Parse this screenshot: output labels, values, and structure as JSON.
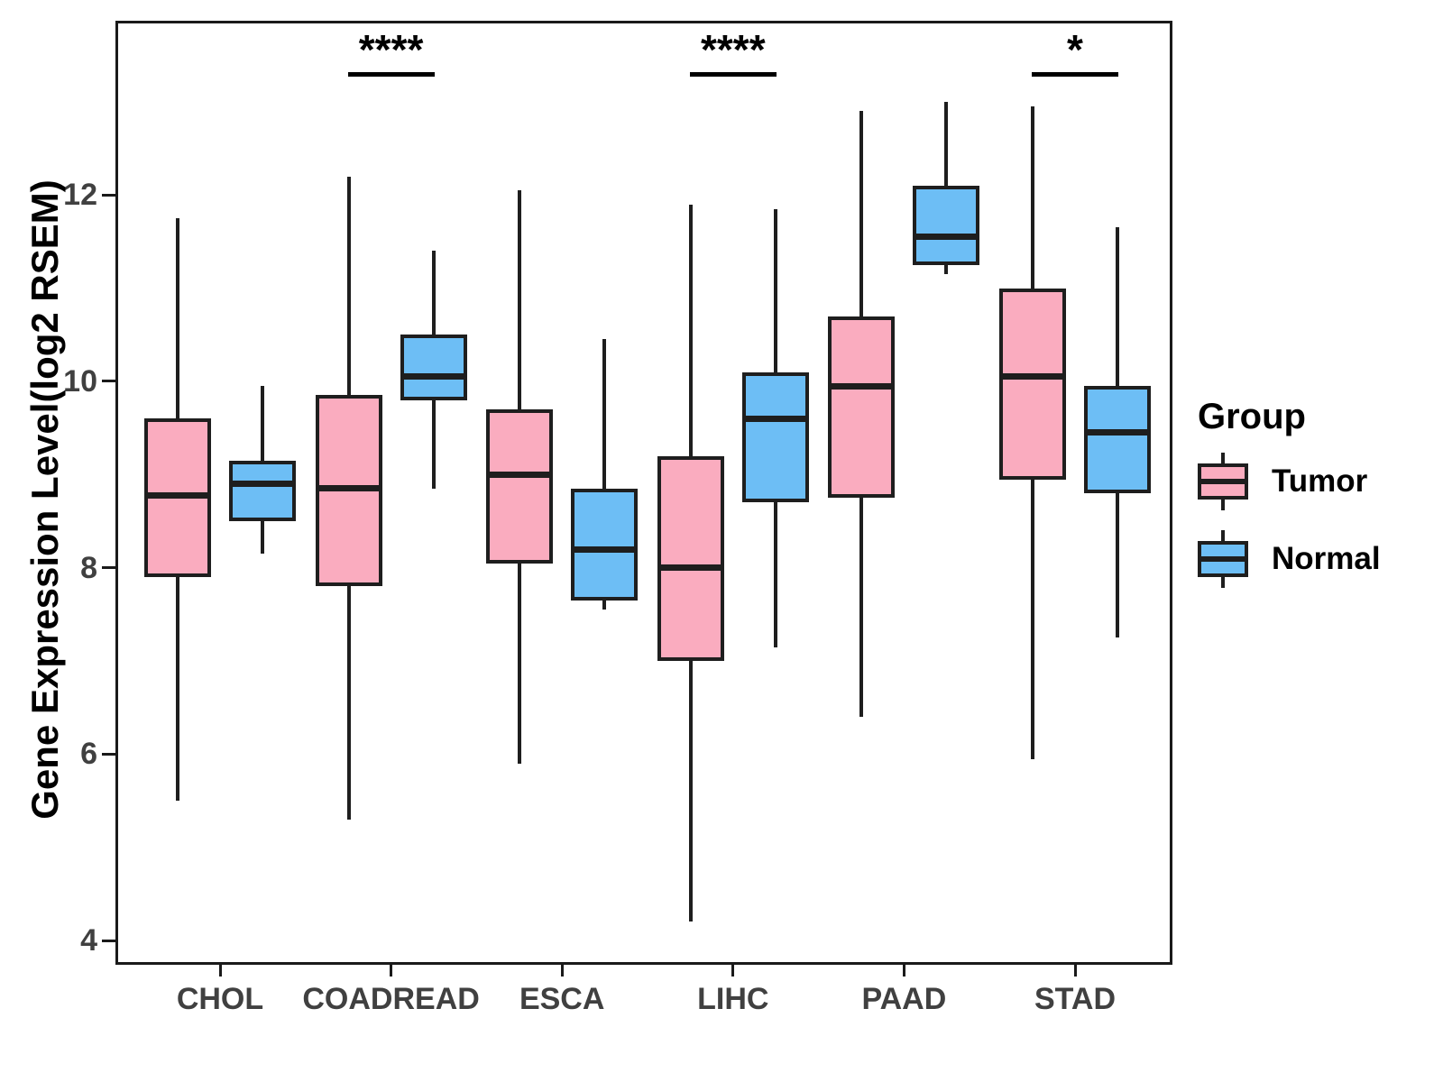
{
  "chart_data": {
    "type": "boxplot",
    "title": "",
    "ylabel": "Gene Expression Level(log2 RSEM)",
    "xlabel": "",
    "categories": [
      "CHOL",
      "COADREAD",
      "ESCA",
      "LIHC",
      "PAAD",
      "STAD"
    ],
    "y_ticks": [
      12,
      10,
      8,
      6,
      4
    ],
    "ylim": [
      3.74,
      13.87
    ],
    "grid": false,
    "colors": {
      "tumor_fill": "#FAACBF",
      "normal_fill": "#6DBEF5",
      "line": "#1E1E1E",
      "tick_text": "#404040"
    },
    "legend": {
      "title": "Group",
      "position": "right",
      "entries": [
        {
          "label": "Tumor",
          "color": "#FAACBF"
        },
        {
          "label": "Normal",
          "color": "#6DBEF5"
        }
      ]
    },
    "series": [
      {
        "name": "Tumor",
        "color": "#FAACBF",
        "boxes": [
          {
            "category": "CHOL",
            "whisker_low": 5.5,
            "q1": 7.9,
            "median": 8.78,
            "q3": 9.6,
            "whisker_high": 11.75
          },
          {
            "category": "COADREAD",
            "whisker_low": 5.3,
            "q1": 7.8,
            "median": 8.85,
            "q3": 9.85,
            "whisker_high": 12.2
          },
          {
            "category": "ESCA",
            "whisker_low": 5.9,
            "q1": 8.05,
            "median": 9.0,
            "q3": 9.7,
            "whisker_high": 12.05
          },
          {
            "category": "LIHC",
            "whisker_low": 4.2,
            "q1": 7.0,
            "median": 8.0,
            "q3": 9.2,
            "whisker_high": 11.9
          },
          {
            "category": "PAAD",
            "whisker_low": 6.4,
            "q1": 8.75,
            "median": 9.95,
            "q3": 10.7,
            "whisker_high": 12.9
          },
          {
            "category": "STAD",
            "whisker_low": 5.95,
            "q1": 8.95,
            "median": 10.05,
            "q3": 11.0,
            "whisker_high": 12.95
          }
        ]
      },
      {
        "name": "Normal",
        "color": "#6DBEF5",
        "boxes": [
          {
            "category": "CHOL",
            "whisker_low": 8.15,
            "q1": 8.5,
            "median": 8.9,
            "q3": 9.15,
            "whisker_high": 9.95
          },
          {
            "category": "COADREAD",
            "whisker_low": 8.85,
            "q1": 9.8,
            "median": 10.05,
            "q3": 10.5,
            "whisker_high": 11.4
          },
          {
            "category": "ESCA",
            "whisker_low": 7.55,
            "q1": 7.65,
            "median": 8.2,
            "q3": 8.85,
            "whisker_high": 10.45
          },
          {
            "category": "LIHC",
            "whisker_low": 7.15,
            "q1": 8.7,
            "median": 9.6,
            "q3": 10.1,
            "whisker_high": 11.85
          },
          {
            "category": "PAAD",
            "whisker_low": 11.15,
            "q1": 11.25,
            "median": 11.55,
            "q3": 12.1,
            "whisker_high": 13.0
          },
          {
            "category": "STAD",
            "whisker_low": 7.25,
            "q1": 8.8,
            "median": 9.45,
            "q3": 9.95,
            "whisker_high": 11.65
          }
        ]
      }
    ],
    "significance": [
      {
        "category": "COADREAD",
        "label": "****"
      },
      {
        "category": "LIHC",
        "label": "****"
      },
      {
        "category": "STAD",
        "label": "*"
      }
    ]
  }
}
